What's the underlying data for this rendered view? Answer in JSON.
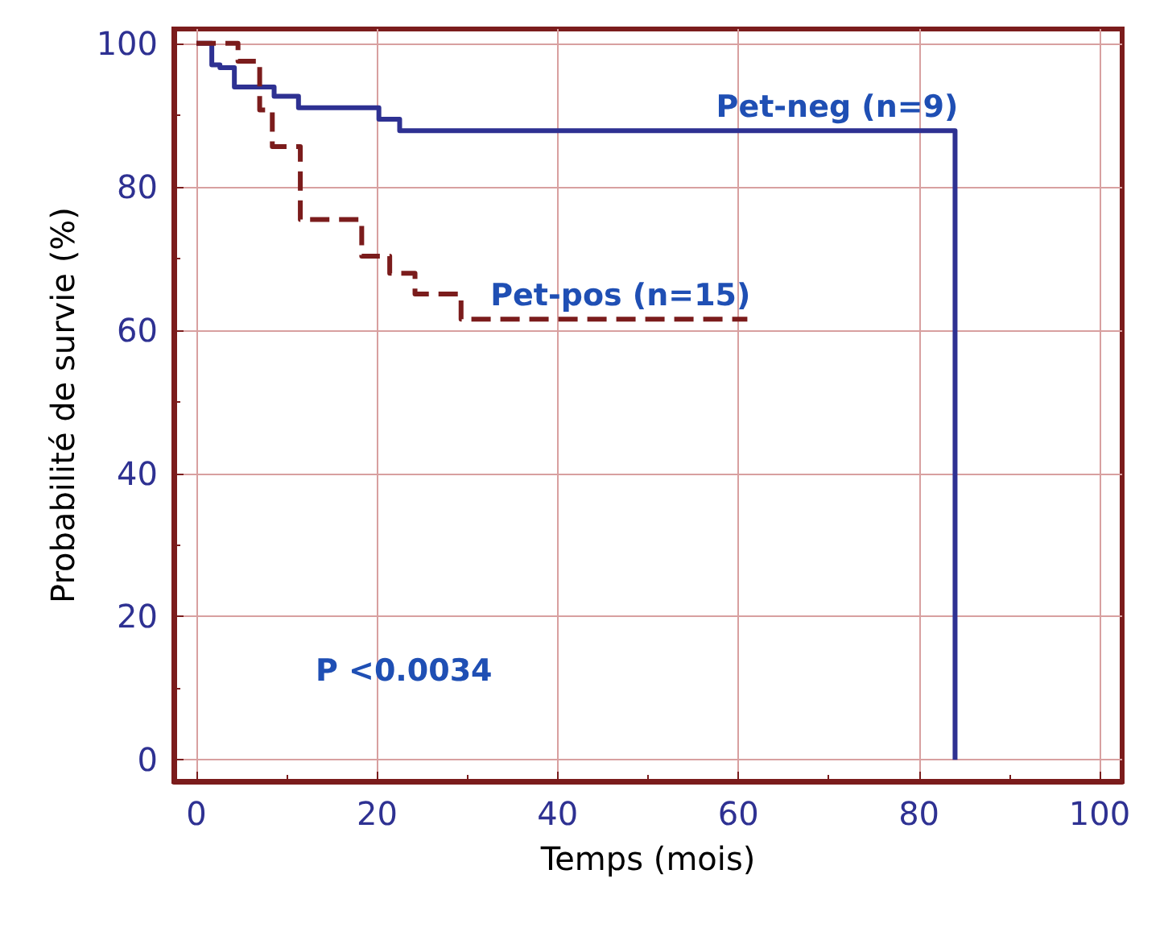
{
  "chart_data": {
    "type": "step",
    "xlabel": "Temps (mois)",
    "ylabel": "Probabilité de survie (%)",
    "xlim": [
      -2.5,
      102.5
    ],
    "ylim": [
      -3,
      102
    ],
    "xticks": [
      0,
      20,
      40,
      60,
      80,
      100
    ],
    "yticks": [
      0,
      20,
      40,
      60,
      80,
      100
    ],
    "grid": true,
    "legend": false,
    "marker": "none",
    "series": [
      {
        "name": "Pet-neg (n=9)",
        "color": "#2e3192",
        "line_style": "solid",
        "x": [
          0,
          1.7,
          2.6,
          4.2,
          8.6,
          11.3,
          20.2,
          22.5,
          84
        ],
        "values": [
          100,
          97,
          96.6,
          93.9,
          92.6,
          91,
          89.4,
          87.8,
          0
        ]
      },
      {
        "name": "Pet-pos (n=15)",
        "color": "#7b1c1c",
        "line_style": "dashed",
        "x": [
          0,
          4.6,
          7,
          8.4,
          11.5,
          18.3,
          21.4,
          24.2,
          29.3,
          61
        ],
        "values": [
          100,
          97.5,
          90.7,
          85.6,
          75.4,
          70.3,
          67.9,
          65,
          61.5,
          61.5
        ]
      }
    ],
    "annotations": [
      "P <0.0034"
    ]
  }
}
